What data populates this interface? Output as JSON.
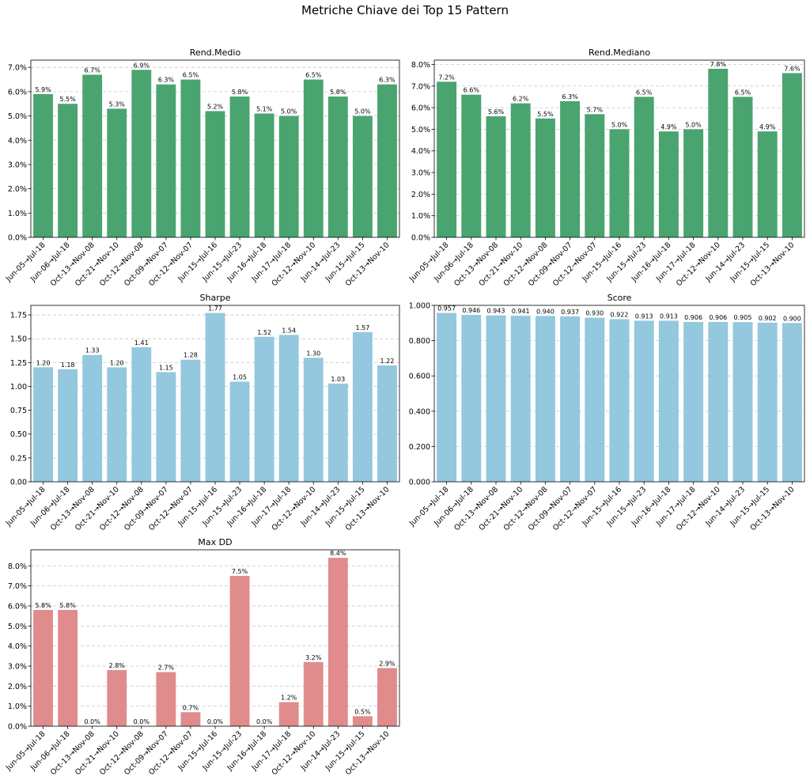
{
  "title": "Metriche Chiave dei Top 15 Pattern",
  "categories": [
    "Jun-05→Jul-18",
    "Jun-06→Jul-18",
    "Oct-13→Nov-08",
    "Oct-21→Nov-10",
    "Oct-12→Nov-08",
    "Oct-09→Nov-07",
    "Oct-12→Nov-07",
    "Jun-15→Jul-16",
    "Jun-15→Jul-23",
    "Jun-16→Jul-18",
    "Jun-17→Jul-18",
    "Oct-12→Nov-10",
    "Jun-14→Jul-23",
    "Jun-15→Jul-15",
    "Oct-13→Nov-10"
  ],
  "chart_data": [
    {
      "type": "bar",
      "title": "Rend.Medio",
      "values": [
        5.9,
        5.5,
        6.7,
        5.3,
        6.9,
        6.3,
        6.5,
        5.2,
        5.8,
        5.1,
        5.0,
        6.5,
        5.8,
        5.0,
        6.3
      ],
      "value_labels": [
        "5.9%",
        "5.5%",
        "6.7%",
        "5.3%",
        "6.9%",
        "6.3%",
        "6.5%",
        "5.2%",
        "5.8%",
        "5.1%",
        "5.0%",
        "6.5%",
        "5.8%",
        "5.0%",
        "6.3%"
      ],
      "unit": "%",
      "ylim": [
        0,
        7.3
      ],
      "yticks": [
        0,
        1,
        2,
        3,
        4,
        5,
        6,
        7
      ],
      "ytick_labels": [
        "0.0%",
        "1.0%",
        "2.0%",
        "3.0%",
        "4.0%",
        "5.0%",
        "6.0%",
        "7.0%"
      ],
      "color": "#4aa470",
      "grid": true
    },
    {
      "type": "bar",
      "title": "Rend.Mediano",
      "values": [
        7.2,
        6.6,
        5.6,
        6.2,
        5.5,
        6.3,
        5.7,
        5.0,
        6.5,
        4.9,
        5.0,
        7.8,
        6.5,
        4.9,
        7.6
      ],
      "value_labels": [
        "7.2%",
        "6.6%",
        "5.6%",
        "6.2%",
        "5.5%",
        "6.3%",
        "5.7%",
        "5.0%",
        "6.5%",
        "4.9%",
        "5.0%",
        "7.8%",
        "6.5%",
        "4.9%",
        "7.6%"
      ],
      "unit": "%",
      "ylim": [
        0,
        8.2
      ],
      "yticks": [
        0,
        1,
        2,
        3,
        4,
        5,
        6,
        7,
        8
      ],
      "ytick_labels": [
        "0.0%",
        "1.0%",
        "2.0%",
        "3.0%",
        "4.0%",
        "5.0%",
        "6.0%",
        "7.0%",
        "8.0%"
      ],
      "color": "#4aa470",
      "grid": true
    },
    {
      "type": "bar",
      "title": "Sharpe",
      "values": [
        1.2,
        1.18,
        1.33,
        1.2,
        1.41,
        1.15,
        1.28,
        1.77,
        1.05,
        1.52,
        1.54,
        1.3,
        1.03,
        1.57,
        1.22
      ],
      "value_labels": [
        "1.20",
        "1.18",
        "1.33",
        "1.20",
        "1.41",
        "1.15",
        "1.28",
        "1.77",
        "1.05",
        "1.52",
        "1.54",
        "1.30",
        "1.03",
        "1.57",
        "1.22"
      ],
      "unit": "",
      "ylim": [
        0,
        1.85
      ],
      "yticks": [
        0,
        0.25,
        0.5,
        0.75,
        1.0,
        1.25,
        1.5,
        1.75
      ],
      "ytick_labels": [
        "0.00",
        "0.25",
        "0.50",
        "0.75",
        "1.00",
        "1.25",
        "1.50",
        "1.75"
      ],
      "color": "#93c8de",
      "grid": true
    },
    {
      "type": "bar",
      "title": "Score",
      "values": [
        0.957,
        0.946,
        0.943,
        0.941,
        0.94,
        0.937,
        0.93,
        0.922,
        0.913,
        0.913,
        0.906,
        0.906,
        0.905,
        0.902,
        0.9
      ],
      "value_labels": [
        "0.957",
        "0.946",
        "0.943",
        "0.941",
        "0.940",
        "0.937",
        "0.930",
        "0.922",
        "0.913",
        "0.913",
        "0.906",
        "0.906",
        "0.905",
        "0.902",
        "0.900"
      ],
      "unit": "",
      "ylim": [
        0,
        1.0
      ],
      "yticks": [
        0,
        0.2,
        0.4,
        0.6,
        0.8,
        1.0
      ],
      "ytick_labels": [
        "0.000",
        "0.200",
        "0.400",
        "0.600",
        "0.800",
        "1.000"
      ],
      "color": "#93c8de",
      "grid": true
    },
    {
      "type": "bar",
      "title": "Max DD",
      "values": [
        5.8,
        5.8,
        0.0,
        2.8,
        0.0,
        2.7,
        0.7,
        0.0,
        7.5,
        0.0,
        1.2,
        3.2,
        8.4,
        0.5,
        2.9
      ],
      "value_labels": [
        "5.8%",
        "5.8%",
        "0.0%",
        "2.8%",
        "0.0%",
        "2.7%",
        "0.7%",
        "0.0%",
        "7.5%",
        "0.0%",
        "1.2%",
        "3.2%",
        "8.4%",
        "0.5%",
        "2.9%"
      ],
      "unit": "%",
      "ylim": [
        0,
        8.8
      ],
      "yticks": [
        0,
        1,
        2,
        3,
        4,
        5,
        6,
        7,
        8
      ],
      "ytick_labels": [
        "0.0%",
        "1.0%",
        "2.0%",
        "3.0%",
        "4.0%",
        "5.0%",
        "6.0%",
        "7.0%",
        "8.0%"
      ],
      "color": "#e08c8c",
      "grid": true
    }
  ]
}
